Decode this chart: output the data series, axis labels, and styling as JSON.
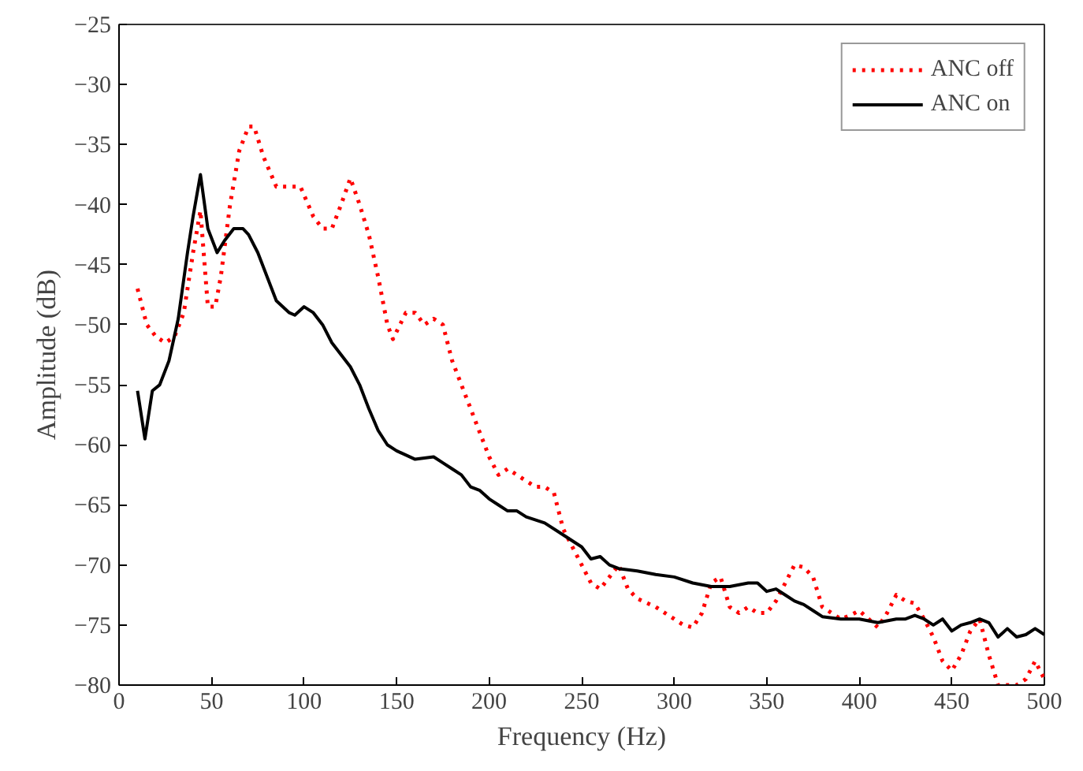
{
  "chart_data": {
    "type": "line",
    "xlabel": "Frequency (Hz)",
    "ylabel": "Amplitude (dB)",
    "xlim": [
      0,
      500
    ],
    "ylim": [
      -80,
      -25
    ],
    "xticks": [
      0,
      50,
      100,
      150,
      200,
      250,
      300,
      350,
      400,
      450,
      500
    ],
    "yticks": [
      -80,
      -75,
      -70,
      -65,
      -60,
      -55,
      -50,
      -45,
      -40,
      -35,
      -30,
      -25
    ],
    "legend": "top right",
    "grid": false,
    "series": [
      {
        "name": "ANC off",
        "color": "#ff0000",
        "line_style": "dotted",
        "x": [
          10,
          15,
          20,
          25,
          30,
          35,
          40,
          44,
          48,
          52,
          55,
          60,
          65,
          70,
          73,
          78,
          85,
          95,
          98,
          105,
          110,
          115,
          120,
          125,
          130,
          135,
          140,
          145,
          148,
          155,
          160,
          165,
          170,
          175,
          180,
          190,
          195,
          200,
          205,
          210,
          215,
          220,
          225,
          230,
          235,
          240,
          245,
          250,
          255,
          260,
          265,
          270,
          275,
          280,
          290,
          300,
          305,
          310,
          315,
          320,
          325,
          330,
          335,
          340,
          345,
          350,
          355,
          360,
          365,
          370,
          375,
          380,
          385,
          390,
          395,
          400,
          405,
          410,
          415,
          420,
          425,
          430,
          435,
          440,
          445,
          450,
          455,
          460,
          465,
          470,
          475,
          480,
          485,
          490,
          495,
          500
        ],
        "values": [
          -47,
          -50,
          -51,
          -51.5,
          -51,
          -49,
          -44,
          -40.5,
          -48.5,
          -48.5,
          -46,
          -40,
          -35.5,
          -33.5,
          -33.5,
          -36,
          -38.5,
          -38.5,
          -38.5,
          -41,
          -42,
          -42,
          -40,
          -37.8,
          -40,
          -42.5,
          -46,
          -50,
          -51.2,
          -49,
          -49,
          -50,
          -49.5,
          -50,
          -53,
          -57,
          -59,
          -61,
          -62.5,
          -62,
          -62.5,
          -63,
          -63.5,
          -63.5,
          -64,
          -67,
          -68.5,
          -70,
          -71.5,
          -72,
          -71,
          -70,
          -72,
          -72.8,
          -73.5,
          -74.5,
          -75,
          -75.2,
          -74,
          -71.5,
          -71,
          -73.5,
          -74,
          -73.5,
          -74,
          -74,
          -73,
          -71.5,
          -70,
          -70.2,
          -71,
          -73.5,
          -74,
          -74.5,
          -74.2,
          -73.8,
          -74.5,
          -75.2,
          -74,
          -72.5,
          -73,
          -73.2,
          -74.5,
          -76,
          -78,
          -78.8,
          -77.5,
          -75.5,
          -74.5,
          -77.5,
          -80,
          -80,
          -80,
          -79.5,
          -78,
          -79.5
        ]
      },
      {
        "name": "ANC on",
        "color": "#000000",
        "line_style": "solid",
        "x": [
          10,
          14,
          18,
          22,
          27,
          32,
          37,
          40,
          44,
          48,
          53,
          57,
          62,
          67,
          70,
          75,
          80,
          85,
          92,
          95,
          100,
          105,
          110,
          115,
          120,
          125,
          130,
          135,
          140,
          145,
          150,
          160,
          170,
          175,
          180,
          185,
          190,
          195,
          200,
          205,
          210,
          215,
          220,
          230,
          240,
          250,
          255,
          260,
          265,
          270,
          280,
          290,
          300,
          310,
          320,
          330,
          340,
          345,
          350,
          355,
          360,
          365,
          370,
          375,
          380,
          390,
          400,
          410,
          420,
          425,
          430,
          435,
          440,
          445,
          450,
          455,
          460,
          465,
          470,
          475,
          480,
          485,
          490,
          495,
          500
        ],
        "values": [
          -55.5,
          -59.5,
          -55.5,
          -55,
          -53,
          -49.5,
          -44,
          -41,
          -37.5,
          -42,
          -44,
          -43,
          -42,
          -42,
          -42.5,
          -44,
          -46,
          -48,
          -49,
          -49.2,
          -48.5,
          -49,
          -50,
          -51.5,
          -52.5,
          -53.5,
          -55,
          -57,
          -58.8,
          -60,
          -60.5,
          -61.2,
          -61,
          -61.5,
          -62,
          -62.5,
          -63.5,
          -63.8,
          -64.5,
          -65,
          -65.5,
          -65.5,
          -66,
          -66.5,
          -67.5,
          -68.5,
          -69.5,
          -69.3,
          -70,
          -70.3,
          -70.5,
          -70.8,
          -71,
          -71.5,
          -71.8,
          -71.8,
          -71.5,
          -71.5,
          -72.2,
          -72,
          -72.5,
          -73,
          -73.3,
          -73.8,
          -74.3,
          -74.5,
          -74.5,
          -74.8,
          -74.5,
          -74.5,
          -74.2,
          -74.5,
          -75,
          -74.5,
          -75.5,
          -75,
          -74.8,
          -74.5,
          -74.8,
          -76,
          -75.3,
          -76,
          -75.8,
          -75.3,
          -75.8
        ]
      }
    ]
  }
}
